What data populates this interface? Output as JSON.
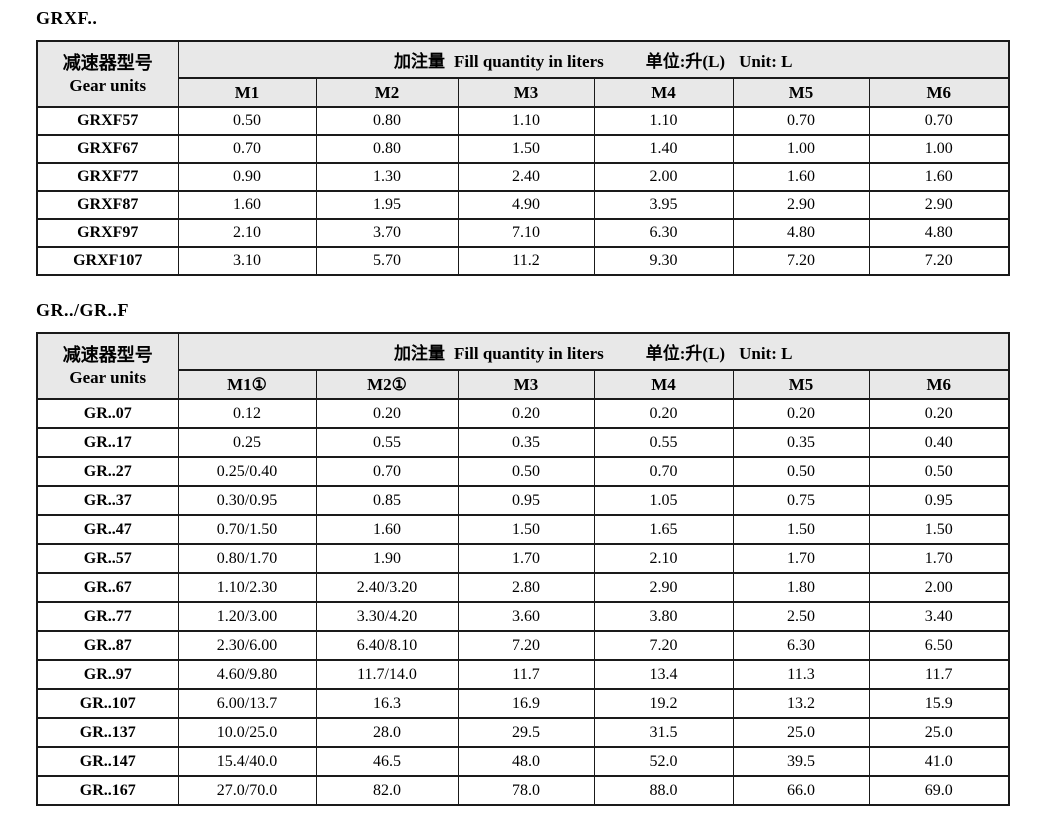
{
  "colors": {
    "header_background": "#e8e8e8",
    "border": "#1a1a1a",
    "text": "#000000",
    "page_background": "#ffffff"
  },
  "table1": {
    "title": "GRXF..",
    "row_header": {
      "cn": "减速器型号",
      "en": "Gear units"
    },
    "fill_header": {
      "cn": "加注量",
      "en": "Fill quantity in liters",
      "unit_cn": "单位:升(L)",
      "unit_en": "Unit: L"
    },
    "columns": [
      "M1",
      "M2",
      "M3",
      "M4",
      "M5",
      "M6"
    ],
    "rows": [
      {
        "model": "GRXF57",
        "values": [
          "0.50",
          "0.80",
          "1.10",
          "1.10",
          "0.70",
          "0.70"
        ]
      },
      {
        "model": "GRXF67",
        "values": [
          "0.70",
          "0.80",
          "1.50",
          "1.40",
          "1.00",
          "1.00"
        ]
      },
      {
        "model": "GRXF77",
        "values": [
          "0.90",
          "1.30",
          "2.40",
          "2.00",
          "1.60",
          "1.60"
        ]
      },
      {
        "model": "GRXF87",
        "values": [
          "1.60",
          "1.95",
          "4.90",
          "3.95",
          "2.90",
          "2.90"
        ]
      },
      {
        "model": "GRXF97",
        "values": [
          "2.10",
          "3.70",
          "7.10",
          "6.30",
          "4.80",
          "4.80"
        ]
      },
      {
        "model": "GRXF107",
        "values": [
          "3.10",
          "5.70",
          "11.2",
          "9.30",
          "7.20",
          "7.20"
        ]
      }
    ]
  },
  "table2": {
    "title": "GR../GR..F",
    "row_header": {
      "cn": "减速器型号",
      "en": "Gear units"
    },
    "fill_header": {
      "cn": "加注量",
      "en": "Fill quantity in liters",
      "unit_cn": "单位:升(L)",
      "unit_en": "Unit: L"
    },
    "columns": [
      "M1①",
      "M2①",
      "M3",
      "M4",
      "M5",
      "M6"
    ],
    "rows": [
      {
        "model": "GR..07",
        "values": [
          "0.12",
          "0.20",
          "0.20",
          "0.20",
          "0.20",
          "0.20"
        ]
      },
      {
        "model": "GR..17",
        "values": [
          "0.25",
          "0.55",
          "0.35",
          "0.55",
          "0.35",
          "0.40"
        ]
      },
      {
        "model": "GR..27",
        "values": [
          "0.25/0.40",
          "0.70",
          "0.50",
          "0.70",
          "0.50",
          "0.50"
        ]
      },
      {
        "model": "GR..37",
        "values": [
          "0.30/0.95",
          "0.85",
          "0.95",
          "1.05",
          "0.75",
          "0.95"
        ]
      },
      {
        "model": "GR..47",
        "values": [
          "0.70/1.50",
          "1.60",
          "1.50",
          "1.65",
          "1.50",
          "1.50"
        ]
      },
      {
        "model": "GR..57",
        "values": [
          "0.80/1.70",
          "1.90",
          "1.70",
          "2.10",
          "1.70",
          "1.70"
        ]
      },
      {
        "model": "GR..67",
        "values": [
          "1.10/2.30",
          "2.40/3.20",
          "2.80",
          "2.90",
          "1.80",
          "2.00"
        ]
      },
      {
        "model": "GR..77",
        "values": [
          "1.20/3.00",
          "3.30/4.20",
          "3.60",
          "3.80",
          "2.50",
          "3.40"
        ]
      },
      {
        "model": "GR..87",
        "values": [
          "2.30/6.00",
          "6.40/8.10",
          "7.20",
          "7.20",
          "6.30",
          "6.50"
        ]
      },
      {
        "model": "GR..97",
        "values": [
          "4.60/9.80",
          "11.7/14.0",
          "11.7",
          "13.4",
          "11.3",
          "11.7"
        ]
      },
      {
        "model": "GR..107",
        "values": [
          "6.00/13.7",
          "16.3",
          "16.9",
          "19.2",
          "13.2",
          "15.9"
        ]
      },
      {
        "model": "GR..137",
        "values": [
          "10.0/25.0",
          "28.0",
          "29.5",
          "31.5",
          "25.0",
          "25.0"
        ]
      },
      {
        "model": "GR..147",
        "values": [
          "15.4/40.0",
          "46.5",
          "48.0",
          "52.0",
          "39.5",
          "41.0"
        ]
      },
      {
        "model": "GR..167",
        "values": [
          "27.0/70.0",
          "82.0",
          "78.0",
          "88.0",
          "66.0",
          "69.0"
        ]
      }
    ]
  }
}
